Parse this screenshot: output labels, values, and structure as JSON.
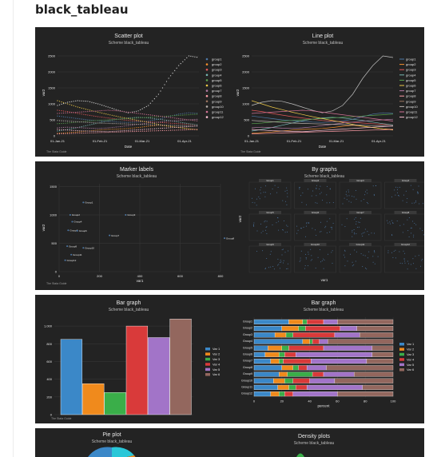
{
  "page": {
    "title": "black_tableau"
  },
  "chart_data": [
    {
      "type": "scatter",
      "title": "Scatter plot",
      "subtitle": "Scheme black_tableau",
      "xlabel": "Date",
      "ylabel": "var2",
      "xticks": [
        "01-Jan-21",
        "01-Feb-21",
        "01-Mar-21",
        "01-Apr-21"
      ],
      "yticks": [
        "0",
        "500",
        "1000",
        "1500",
        "2000",
        "2500"
      ],
      "ylim": [
        0,
        2700
      ],
      "x_start": "2021-01-01",
      "x_end": "2021-04-10",
      "legend": [
        "group1",
        "group2",
        "group3",
        "group4",
        "group5",
        "group6",
        "group7",
        "group8",
        "group9",
        "group10",
        "group11",
        "group12"
      ],
      "legend_position": "right",
      "series": [
        {
          "name": "group1",
          "values": [
            620,
            580,
            540,
            500,
            470,
            450,
            430,
            420,
            430,
            460,
            520,
            600,
            680,
            720,
            700
          ]
        },
        {
          "name": "group2",
          "values": [
            80,
            100,
            120,
            150,
            180,
            200,
            210,
            230,
            260,
            300,
            330,
            300,
            260,
            220,
            200
          ]
        },
        {
          "name": "group3",
          "values": [
            800,
            760,
            700,
            650,
            600,
            560,
            520,
            480,
            460,
            440,
            420,
            400,
            380,
            360,
            340
          ]
        },
        {
          "name": "group4",
          "values": [
            150,
            200,
            260,
            330,
            400,
            470,
            520,
            560,
            580,
            560,
            520,
            480,
            430,
            380,
            340
          ]
        },
        {
          "name": "group5",
          "values": [
            380,
            400,
            430,
            460,
            480,
            500,
            520,
            540,
            560,
            580,
            600,
            620,
            640,
            660,
            680
          ]
        },
        {
          "name": "group6",
          "values": [
            1100,
            1000,
            900,
            820,
            740,
            670,
            600,
            540,
            480,
            420,
            360,
            300,
            260,
            220,
            180
          ]
        },
        {
          "name": "group7",
          "values": [
            250,
            270,
            260,
            240,
            230,
            250,
            280,
            320,
            360,
            400,
            430,
            460,
            480,
            500,
            520
          ]
        },
        {
          "name": "group8",
          "values": [
            60,
            70,
            80,
            90,
            100,
            110,
            120,
            130,
            140,
            150,
            160,
            170,
            180,
            190,
            200
          ]
        },
        {
          "name": "group9",
          "values": [
            950,
            1050,
            1100,
            1080,
            1000,
            900,
            800,
            720,
            780,
            950,
            1300,
            1800,
            2200,
            2500,
            2450
          ]
        },
        {
          "name": "group10",
          "values": [
            480,
            460,
            440,
            420,
            400,
            390,
            380,
            370,
            360,
            350,
            340,
            330,
            320,
            310,
            300
          ]
        },
        {
          "name": "group11",
          "values": [
            700,
            720,
            740,
            760,
            780,
            800,
            780,
            740,
            700,
            660,
            620,
            580,
            540,
            500,
            460
          ]
        },
        {
          "name": "group12",
          "values": [
            200,
            180,
            160,
            150,
            140,
            130,
            150,
            170,
            190,
            210,
            230,
            250,
            270,
            290,
            310
          ]
        }
      ]
    },
    {
      "type": "line",
      "title": "Line plot",
      "subtitle": "Scheme black_tableau",
      "xlabel": "Date",
      "ylabel": "var2",
      "xticks": [
        "01-Jan-21",
        "01-Feb-21",
        "01-Mar-21",
        "01-Apr-21"
      ],
      "yticks": [
        "0",
        "500",
        "1000",
        "1500",
        "2000",
        "2500"
      ],
      "ylim": [
        0,
        2700
      ],
      "legend": [
        "group1",
        "group2",
        "group3",
        "group4",
        "group5",
        "group6",
        "group7",
        "group8",
        "group9",
        "group10",
        "group11",
        "group12"
      ],
      "legend_position": "right"
    },
    {
      "type": "scatter",
      "title": "Marker labels",
      "subtitle": "Scheme black_tableau",
      "xlabel": "var1",
      "ylabel": "var2",
      "xticks": [
        "0",
        "200",
        "400",
        "600",
        "800"
      ],
      "yticks": [
        "0",
        "500",
        "1000",
        "1500"
      ],
      "xlim": [
        0,
        800
      ],
      "ylim": [
        0,
        1550
      ],
      "points": [
        {
          "label": "Group1",
          "x": 120,
          "y": 1220
        },
        {
          "label": "Group2",
          "x": 55,
          "y": 1000
        },
        {
          "label": "Group3",
          "x": 330,
          "y": 1000
        },
        {
          "label": "Group4",
          "x": 65,
          "y": 880
        },
        {
          "label": "Group5",
          "x": 45,
          "y": 730
        },
        {
          "label": "Group6",
          "x": 90,
          "y": 720
        },
        {
          "label": "Group7",
          "x": 250,
          "y": 640
        },
        {
          "label": "Group8",
          "x": 820,
          "y": 590
        },
        {
          "label": "Group9",
          "x": 40,
          "y": 450
        },
        {
          "label": "Group10",
          "x": 120,
          "y": 420
        },
        {
          "label": "Group11",
          "x": 60,
          "y": 300
        },
        {
          "label": "Group12",
          "x": 30,
          "y": 200
        }
      ]
    },
    {
      "type": "scatter",
      "title": "By graphs",
      "subtitle": "Scheme black_tableau",
      "xlabel": "var1",
      "ylabel": "var2",
      "facets": [
        "Group1",
        "Group2",
        "Group3",
        "Group4",
        "Group5",
        "Group6",
        "Group7",
        "Group8",
        "Group9",
        "Group10",
        "Group11",
        "Group12"
      ]
    },
    {
      "type": "bar",
      "title": "Bar graph",
      "subtitle": "Scheme black_tableau",
      "categories": [
        "Var 1",
        "Var 2",
        "Var 3",
        "Var 4",
        "Var 5",
        "Var 6"
      ],
      "values": [
        850,
        350,
        250,
        1000,
        870,
        1080
      ],
      "yticks": [
        "0",
        "200",
        "400",
        "600",
        "800",
        "1,000"
      ],
      "ylim": [
        0,
        1100
      ],
      "legend_position": "right"
    },
    {
      "type": "bar",
      "title": "Bar graph",
      "subtitle": "Scheme black_tableau",
      "orientation": "horizontal",
      "stacked": true,
      "xlabel": "percent",
      "xticks": [
        "0",
        "20",
        "40",
        "60",
        "80",
        "100"
      ],
      "categories": [
        "Group1",
        "Group2",
        "Group3",
        "Group4",
        "Group5",
        "Group6",
        "Group7",
        "Group8",
        "Group9",
        "Group10",
        "Group11",
        "Group12"
      ],
      "series": [
        {
          "name": "Var 1",
          "values": [
            25,
            20,
            15,
            35,
            10,
            8,
            12,
            20,
            18,
            14,
            17,
            12
          ]
        },
        {
          "name": "Var 2",
          "values": [
            10,
            12,
            8,
            5,
            10,
            10,
            6,
            8,
            6,
            8,
            8,
            6
          ]
        },
        {
          "name": "Var 3",
          "values": [
            3,
            5,
            5,
            2,
            5,
            4,
            3,
            4,
            18,
            6,
            5,
            4
          ]
        },
        {
          "name": "Var 4",
          "values": [
            12,
            25,
            30,
            5,
            25,
            8,
            20,
            6,
            8,
            12,
            8,
            6
          ]
        },
        {
          "name": "Var 5",
          "values": [
            10,
            12,
            18,
            6,
            35,
            55,
            40,
            14,
            22,
            18,
            40,
            32
          ]
        },
        {
          "name": "Var 6",
          "values": [
            40,
            26,
            24,
            47,
            15,
            15,
            19,
            48,
            28,
            42,
            22,
            40
          ]
        }
      ],
      "legend_position": "right"
    },
    {
      "type": "pie",
      "title": "Pie plot",
      "subtitle": "Scheme black_tableau"
    },
    {
      "type": "area",
      "title": "Density plots",
      "subtitle": "Scheme black_tableau"
    }
  ],
  "footnote": "The Stata Guide",
  "colors": [
    "#4E79A7",
    "#F28E2B",
    "#E15759",
    "#76B7B2",
    "#59A14F",
    "#EDC948",
    "#B07AA1",
    "#FF9DA7",
    "#9C755F",
    "#BAB0AC",
    "#D37295",
    "#FABFD2"
  ],
  "bar_colors": [
    "#3B88C8",
    "#F08A1C",
    "#3AAE49",
    "#D93A3A",
    "#A274C8",
    "#93675E"
  ]
}
